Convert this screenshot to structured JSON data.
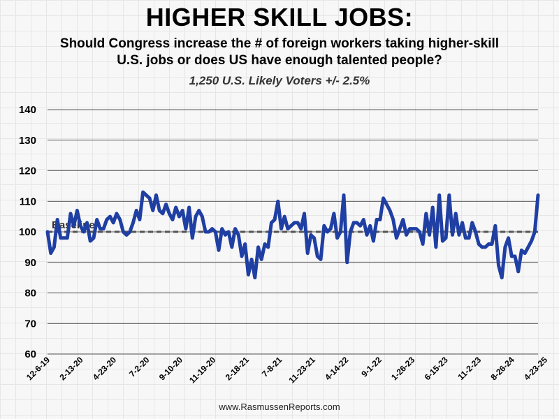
{
  "header": {
    "title": "HIGHER SKILL JOBS:",
    "subtitle_line1": "Should Congress increase the # of foreign workers taking higher-skill",
    "subtitle_line2": "U.S. jobs or does US have enough talented people?",
    "sample": "1,250 U.S. Likely Voters +/- 2.5%"
  },
  "footer": {
    "source": "www.RasmussenReports.com"
  },
  "colors": {
    "line": "#1f3fa3",
    "baseline": "#555555",
    "grid": "#222222"
  },
  "chart_data": {
    "type": "line",
    "title": "HIGHER SKILL JOBS:",
    "ylim": [
      60,
      140
    ],
    "yticks": [
      60,
      70,
      80,
      90,
      100,
      110,
      120,
      130,
      140
    ],
    "grid": "horizontal",
    "x_tick_labels": [
      "12-6-19",
      "2-13-20",
      "4-23-20",
      "7-2-20",
      "9-10-20",
      "11-19-20",
      "2-18-21",
      "7-8-21",
      "11-23-21",
      "4-14-22",
      "9-1-22",
      "1-26-23",
      "6-15-23",
      "11-2-23",
      "8-26-24",
      "4-23-25"
    ],
    "reference_line": {
      "label": "Baseline",
      "value": 100,
      "style": "dashed"
    },
    "series": [
      {
        "values": [
          100,
          93,
          95,
          104,
          98,
          98,
          98,
          106,
          102,
          107,
          102,
          100,
          103,
          97,
          98,
          104,
          101,
          101,
          104,
          105,
          103,
          106,
          104,
          100,
          99,
          100,
          103,
          107,
          104,
          113,
          112,
          111,
          107,
          112,
          107,
          106,
          109,
          106,
          104,
          108,
          105,
          107,
          101,
          108,
          98,
          105,
          107,
          105,
          100,
          100,
          101,
          100,
          94,
          101,
          99,
          100,
          95,
          101,
          99,
          92,
          96,
          86,
          91,
          85,
          95,
          91,
          96,
          95,
          103,
          104,
          110,
          101,
          105,
          101,
          102,
          103,
          103,
          101,
          106,
          93,
          99,
          98,
          92,
          91,
          102,
          100,
          101,
          106,
          98,
          100,
          112,
          90,
          100,
          103,
          103,
          102,
          104,
          99,
          102,
          97,
          104,
          104,
          111,
          109,
          107,
          104,
          98,
          101,
          104,
          99,
          101,
          101,
          101,
          100,
          96,
          106,
          99,
          108,
          95,
          112,
          97,
          98,
          112,
          99,
          106,
          99,
          103,
          98,
          98,
          103,
          100,
          96,
          95,
          95,
          96,
          96,
          102,
          89,
          85,
          95,
          98,
          92,
          92,
          87,
          94,
          93,
          95,
          97,
          100,
          112
        ]
      }
    ]
  }
}
